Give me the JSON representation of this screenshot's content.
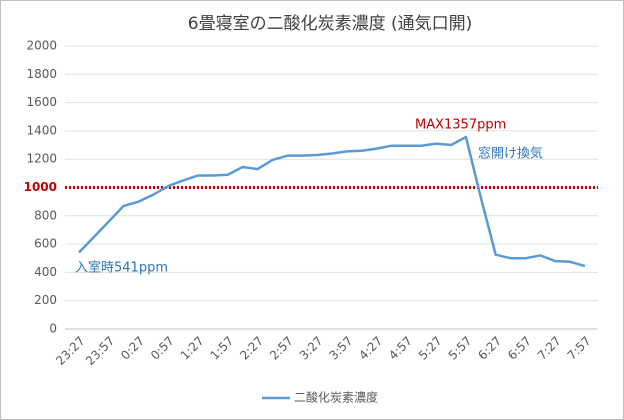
{
  "chart_data": {
    "type": "line",
    "title": "6畳寝室の二酸化炭素濃度 (通気口開)",
    "categories": [
      "23:27",
      null,
      "23:57",
      null,
      "0:27",
      null,
      "0:57",
      null,
      "1:27",
      null,
      "1:57",
      null,
      "2:27",
      null,
      "2:57",
      null,
      "3:27",
      null,
      "3:57",
      null,
      "4:27",
      null,
      "4:57",
      null,
      "5:27",
      null,
      "5:57",
      null,
      "6:27",
      null,
      "6:57",
      null,
      "7:27",
      null,
      "7:57"
    ],
    "series": [
      {
        "name": "二酸化炭素濃度",
        "color": "#5b9bd5",
        "values": [
          541,
          650,
          760,
          870,
          900,
          950,
          1010,
          1050,
          1085,
          1085,
          1090,
          1145,
          1130,
          1195,
          1225,
          1225,
          1230,
          1240,
          1255,
          1260,
          1275,
          1295,
          1295,
          1295,
          1310,
          1300,
          1357,
          930,
          525,
          500,
          500,
          520,
          480,
          475,
          445
        ]
      }
    ],
    "ylim": [
      0,
      2000
    ],
    "yticks": [
      0,
      200,
      400,
      600,
      800,
      1000,
      1200,
      1400,
      1600,
      1800,
      2000
    ],
    "threshold": {
      "value": 1000,
      "color": "#c00000"
    },
    "annotations": [
      {
        "text": "MAX1357ppm",
        "color": "#c00000"
      },
      {
        "text": "窓開け換気",
        "color": "#2e75b6"
      },
      {
        "text": "入室時541ppm",
        "color": "#2e75b6"
      }
    ],
    "legend": "bottom"
  }
}
